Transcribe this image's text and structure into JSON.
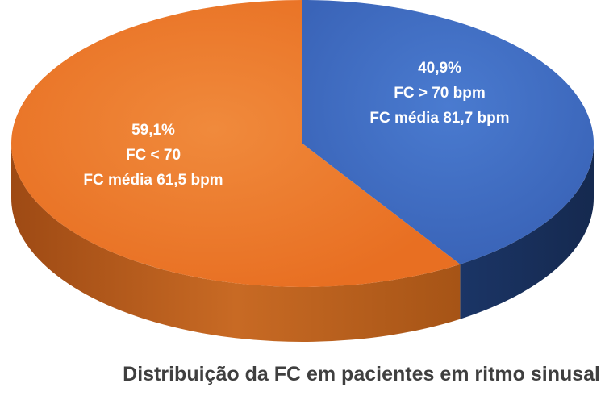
{
  "chart_data": {
    "type": "pie",
    "title": "Distribuição da FC em pacientes em ritmo sinusal",
    "slices": [
      {
        "percent_label": "40,9%",
        "value": 40.9,
        "label_line2": "FC > 70 bpm",
        "label_line3": "FC média 81,7 bpm",
        "color": "#4472c4",
        "side_color": "#1f3a6e"
      },
      {
        "percent_label": "59,1%",
        "value": 59.1,
        "label_line2": "FC < 70",
        "label_line3": "FC média 61,5 bpm",
        "color": "#ed7d31",
        "side_color": "#b85a1c"
      }
    ],
    "style": "3d-exploded-free"
  }
}
